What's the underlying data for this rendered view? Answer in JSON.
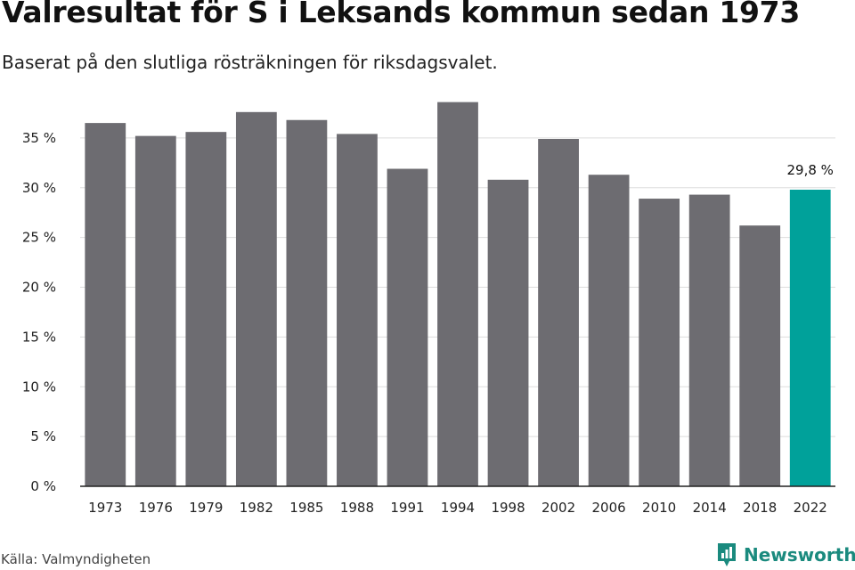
{
  "title": "Valresultat för S i Leksands kommun sedan 1973",
  "subtitle": "Baserat på den slutliga rösträkningen för riksdagsvalet.",
  "source": "Källa: Valmyndigheten",
  "brand": {
    "name": "Newsworthy",
    "logo_icon": "newsworthy-logo-icon",
    "color": "#1a8a7e"
  },
  "colors": {
    "bar": "#6d6c71",
    "highlight": "#00a19a",
    "grid": "#dddddd",
    "axis": "#222222"
  },
  "chart_data": {
    "type": "bar",
    "categories": [
      "1973",
      "1976",
      "1979",
      "1982",
      "1985",
      "1988",
      "1991",
      "1994",
      "1998",
      "2002",
      "2006",
      "2010",
      "2014",
      "2018",
      "2022"
    ],
    "values": [
      36.5,
      35.2,
      35.6,
      37.6,
      36.8,
      35.4,
      31.9,
      38.6,
      30.8,
      34.9,
      31.3,
      28.9,
      29.3,
      26.2,
      29.8
    ],
    "highlight_index": 14,
    "data_labels": [
      {
        "index": 14,
        "text": "29,8 %"
      }
    ],
    "yticks": [
      0,
      5,
      10,
      15,
      20,
      25,
      30,
      35
    ],
    "ytick_labels": [
      "0 %",
      "5 %",
      "10 %",
      "15 %",
      "20 %",
      "25 %",
      "30 %",
      "35 %"
    ],
    "ylim": [
      0,
      40
    ],
    "grid": true,
    "legend": false
  }
}
